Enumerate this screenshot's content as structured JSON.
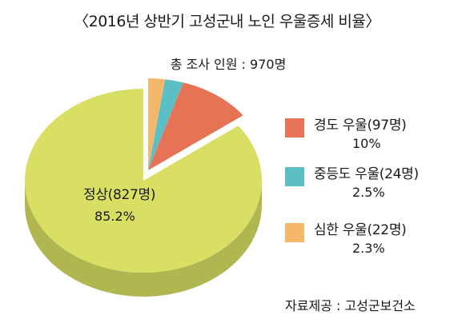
{
  "header": {
    "title": "〈2016년 상반기 고성군내 노인 우울증세 비율〉",
    "subtitle": "총 조사 인원 : 970명"
  },
  "chart_data": {
    "type": "pie",
    "title": "〈2016년 상반기 고성군내 노인 우울증세 비율〉",
    "subtitle": "총 조사 인원 : 970명",
    "total": 970,
    "slices": [
      {
        "name": "정상",
        "count": 827,
        "percent": 85.2,
        "color": "#d8df62",
        "label": "정상(827명)",
        "pct_label": "85.2%"
      },
      {
        "name": "경도 우울",
        "count": 97,
        "percent": 10,
        "color": "#e67356",
        "label": "경도 우울(97명)",
        "pct_label": "10%"
      },
      {
        "name": "중등도 우울",
        "count": 24,
        "percent": 2.5,
        "color": "#5bbfc6",
        "label": "중등도 우울(24명)",
        "pct_label": "2.5%"
      },
      {
        "name": "심한 우울",
        "count": 22,
        "percent": 2.3,
        "color": "#f5b86a",
        "label": "심한 우울(22명)",
        "pct_label": "2.3%"
      }
    ],
    "legend_position": "right",
    "style": "3d exploded"
  },
  "legend": [
    {
      "label": "경도 우울(97명)",
      "pct": "10%",
      "color": "#e67356"
    },
    {
      "label": "중등도 우울(24명)",
      "pct": "2.5%",
      "color": "#5bbfc6"
    },
    {
      "label": "심한 우울(22명)",
      "pct": "2.3%",
      "color": "#f5b86a"
    }
  ],
  "source": "자료제공 : 고성군보건소"
}
